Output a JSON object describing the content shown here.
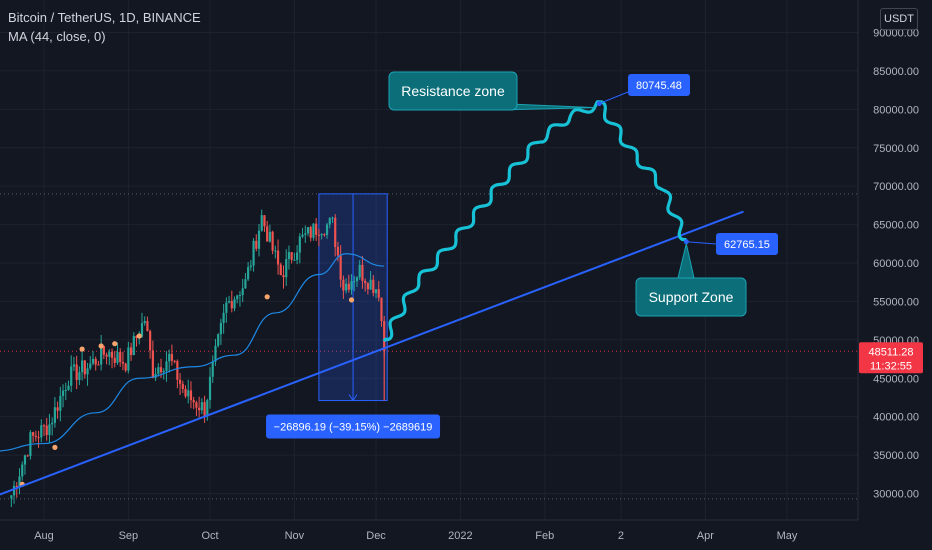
{
  "header": {
    "symbol_title": "Bitcoin / TetherUS, 1D, BINANCE",
    "indicator": "MA (44, close, 0)",
    "currency_button": "USDT"
  },
  "colors": {
    "background": "#131722",
    "axis_text": "#b2b5be",
    "candle_up": "#26a69a",
    "candle_down": "#ef5350",
    "ma_line": "#2962ff",
    "trendline": "#2962ff",
    "projection": "#18c2d6",
    "callout": "#0b6e79",
    "price_label": "#2962ff",
    "current_price": "#f23645"
  },
  "chart_data": {
    "type": "candlestick",
    "symbol": "Bitcoin / TetherUS",
    "interval": "1D",
    "exchange": "BINANCE",
    "y_range": [
      28000,
      95000
    ],
    "y_ticks": [
      30000,
      35000,
      40000,
      45000,
      50000,
      55000,
      60000,
      65000,
      70000,
      75000,
      80000,
      85000,
      90000
    ],
    "y_tick_labels": [
      "30000.00",
      "35000.00",
      "40000.00",
      "45000.00",
      "50000.00",
      "55000.00",
      "60000.00",
      "65000.00",
      "70000.00",
      "75000.00",
      "80000.00",
      "85000.00",
      "90000.00"
    ],
    "x_tick_labels": [
      "Aug",
      "Sep",
      "Oct",
      "Nov",
      "Dec",
      "2022",
      "Feb",
      "2",
      "Apr",
      "May"
    ],
    "x_range": [
      "2021-07-13",
      "2022-05-31"
    ],
    "x_tick_dates": [
      "2021-08-01",
      "2021-09-01",
      "2021-10-01",
      "2021-11-01",
      "2021-12-01",
      "2022-01-01",
      "2022-02-01",
      "2022-03-01",
      "2022-04-01",
      "2022-05-01"
    ],
    "price_path": [
      [
        "2021-07-20",
        29800
      ],
      [
        "2021-07-27",
        37000
      ],
      [
        "2021-08-03",
        39000
      ],
      [
        "2021-08-10",
        45200
      ],
      [
        "2021-08-17",
        46500
      ],
      [
        "2021-08-24",
        48500
      ],
      [
        "2021-08-31",
        47100
      ],
      [
        "2021-09-07",
        52700
      ],
      [
        "2021-09-10",
        46000
      ],
      [
        "2021-09-16",
        47700
      ],
      [
        "2021-09-22",
        42800
      ],
      [
        "2021-09-29",
        41000
      ],
      [
        "2021-10-03",
        48000
      ],
      [
        "2021-10-07",
        54500
      ],
      [
        "2021-10-14",
        57400
      ],
      [
        "2021-10-20",
        66000
      ],
      [
        "2021-10-27",
        58500
      ],
      [
        "2021-11-03",
        62900
      ],
      [
        "2021-11-10",
        64800
      ],
      [
        "2021-11-15",
        65000
      ],
      [
        "2021-11-19",
        57000
      ],
      [
        "2021-11-25",
        59000
      ],
      [
        "2021-11-29",
        57500
      ],
      [
        "2021-12-02",
        56500
      ],
      [
        "2021-12-04",
        48511.28
      ]
    ],
    "moving_average": {
      "name": "MA (44, close, 0)",
      "path": [
        [
          "2021-07-13",
          35500
        ],
        [
          "2021-08-01",
          36500
        ],
        [
          "2021-08-20",
          40500
        ],
        [
          "2021-09-05",
          45000
        ],
        [
          "2021-09-25",
          46500
        ],
        [
          "2021-10-10",
          48000
        ],
        [
          "2021-10-25",
          53500
        ],
        [
          "2021-11-10",
          58500
        ],
        [
          "2021-11-20",
          61200
        ],
        [
          "2021-12-04",
          59600
        ]
      ]
    },
    "trendline": {
      "from": [
        "2021-07-13",
        29500
      ],
      "to": [
        "2022-04-15",
        66700
      ]
    },
    "projection_path": [
      [
        "2021-12-04",
        49800
      ],
      [
        "2021-12-15",
        57000
      ],
      [
        "2021-12-30",
        63000
      ],
      [
        "2022-01-15",
        70000
      ],
      [
        "2022-01-30",
        76000
      ],
      [
        "2022-02-10",
        79000
      ],
      [
        "2022-02-21",
        80745.48
      ],
      [
        "2022-03-05",
        74500
      ],
      [
        "2022-03-16",
        70000
      ],
      [
        "2022-03-25",
        62765.15
      ]
    ],
    "date_range_measure": {
      "from_date": "2021-11-10",
      "to_date": "2021-12-04",
      "from_price": 69000,
      "to_price": 42100,
      "label": "−26896.19 (−39.15%) −2689619"
    },
    "annotations": [
      {
        "text": "Resistance zone",
        "anchor_price": 80745.48,
        "anchor_date": "2022-02-21"
      },
      {
        "text": "Support Zone",
        "anchor_price": 62765.15,
        "anchor_date": "2022-03-25"
      }
    ],
    "price_labels": [
      {
        "text": "80745.48",
        "price": 80745.48
      },
      {
        "text": "62765.15",
        "price": 62765.15
      }
    ],
    "current_price": {
      "value": 48511.28,
      "label": "48511.28",
      "countdown": "11:32:55"
    },
    "dotted_levels": [
      69000,
      48511.28,
      29300
    ]
  }
}
